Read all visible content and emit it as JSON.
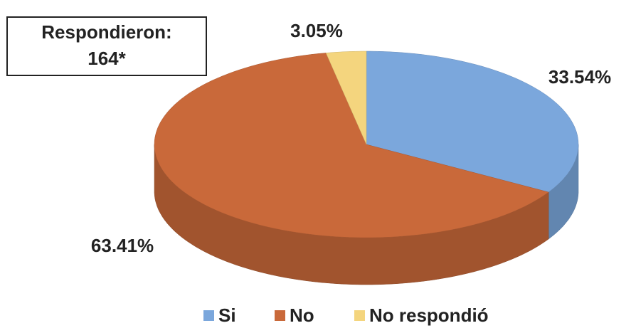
{
  "chart_data": {
    "type": "pie3d",
    "annotation": [
      "Respondieron:",
      "164*"
    ],
    "categories": [
      "Si",
      "No",
      "No respondió"
    ],
    "values": [
      33.54,
      63.41,
      3.05
    ],
    "value_labels": [
      "33.54%",
      "63.41%",
      "3.05%"
    ],
    "colors": [
      "#7ba7dc",
      "#c9693a",
      "#f4d57e"
    ],
    "legend": "bottom"
  }
}
